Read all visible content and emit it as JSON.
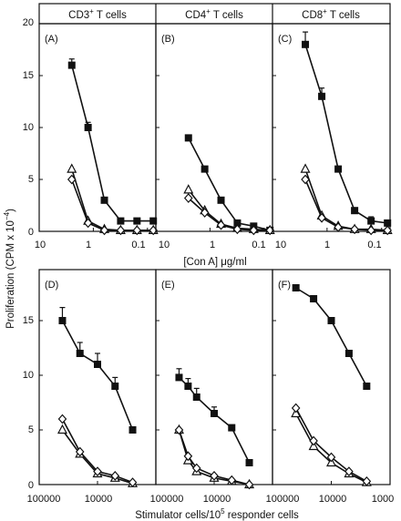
{
  "figure": {
    "ylabel_main": "Proliferation (CPM x 10",
    "ylabel_sup": "−4",
    "ylabel_end": ")",
    "row_top_xlabel": "[Con A] μg/ml",
    "row_bottom_xlabel_a": "Stimulator cells/10",
    "row_bottom_xlabel_sup": "5",
    "row_bottom_xlabel_b": " responder cells",
    "col_titles": [
      {
        "pre": "CD3",
        "sup": "+",
        "post": " T cells"
      },
      {
        "pre": "CD4",
        "sup": "+",
        "post": " T cells"
      },
      {
        "pre": "CD8",
        "sup": "+",
        "post": " T cells"
      }
    ],
    "y_ticks_top": [
      "0",
      "5",
      "10",
      "15",
      "20"
    ],
    "y_ticks_bottom": [
      "0",
      "5",
      "10",
      "15"
    ],
    "x_ticks_top": [
      "10",
      "1",
      "0.1"
    ],
    "x_ticks_bottom": [
      "100000",
      "10000",
      "1000"
    ]
  },
  "chart_data": [
    {
      "type": "line",
      "panel": "(A)",
      "xscale": "log",
      "xreversed": true,
      "xlim": [
        10,
        0.07
      ],
      "ylim": [
        0,
        20
      ],
      "series": [
        {
          "marker": "square",
          "x": [
            2.5,
            1.25,
            0.625,
            0.3125,
            0.156,
            0.078
          ],
          "y": [
            16,
            10,
            3,
            1,
            1,
            1
          ],
          "err": [
            0.6,
            0.5,
            0,
            0,
            0,
            0
          ]
        },
        {
          "marker": "triangle",
          "x": [
            2.5,
            1.25,
            0.625,
            0.3125,
            0.156,
            0.078
          ],
          "y": [
            6,
            1,
            0.2,
            0.1,
            0.1,
            0.1
          ],
          "err": [
            0,
            0,
            0,
            0,
            0,
            0
          ]
        },
        {
          "marker": "diamond",
          "x": [
            2.5,
            1.25,
            0.625,
            0.3125,
            0.156,
            0.078
          ],
          "y": [
            5,
            0.8,
            0.1,
            0.1,
            0.1,
            0.1
          ],
          "err": [
            0,
            0,
            0,
            0,
            0,
            0
          ]
        }
      ]
    },
    {
      "type": "line",
      "panel": "(B)",
      "xscale": "log",
      "xreversed": true,
      "xlim": [
        10,
        0.07
      ],
      "ylim": [
        0,
        20
      ],
      "series": [
        {
          "marker": "square",
          "x": [
            2.5,
            1.25,
            0.625,
            0.3125,
            0.156,
            0.078
          ],
          "y": [
            9,
            6,
            3,
            0.8,
            0.5,
            0.1
          ],
          "err": [
            0,
            0,
            0,
            0,
            0,
            0
          ]
        },
        {
          "marker": "triangle",
          "x": [
            2.5,
            1.25,
            0.625,
            0.3125,
            0.156,
            0.078
          ],
          "y": [
            4,
            2,
            0.7,
            0.3,
            0.2,
            0.1
          ],
          "err": [
            0,
            0,
            0,
            0,
            0,
            0
          ]
        },
        {
          "marker": "diamond",
          "x": [
            2.5,
            1.25,
            0.625,
            0.3125,
            0.156,
            0.078
          ],
          "y": [
            3.2,
            1.8,
            0.6,
            0.2,
            0.1,
            0.1
          ],
          "err": [
            0,
            0,
            0,
            0,
            0,
            0
          ]
        }
      ]
    },
    {
      "type": "line",
      "panel": "(C)",
      "xscale": "log",
      "xreversed": true,
      "xlim": [
        10,
        0.07
      ],
      "ylim": [
        0,
        20
      ],
      "series": [
        {
          "marker": "square",
          "x": [
            2.5,
            1.25,
            0.625,
            0.3125,
            0.156,
            0.078
          ],
          "y": [
            18,
            13,
            6,
            2,
            1,
            0.8
          ],
          "err": [
            1.2,
            0.8,
            0,
            0,
            0.4,
            0
          ]
        },
        {
          "marker": "triangle",
          "x": [
            2.5,
            1.25,
            0.625,
            0.3125,
            0.156,
            0.078
          ],
          "y": [
            6,
            1.5,
            0.5,
            0.2,
            0.2,
            0.1
          ],
          "err": [
            0,
            0,
            0,
            0,
            0,
            0
          ]
        },
        {
          "marker": "diamond",
          "x": [
            2.5,
            1.25,
            0.625,
            0.3125,
            0.156,
            0.078
          ],
          "y": [
            5,
            1.3,
            0.4,
            0.2,
            0.1,
            0.1
          ],
          "err": [
            0,
            0,
            0,
            0,
            0,
            0
          ]
        }
      ]
    },
    {
      "type": "line",
      "panel": "(D)",
      "xscale": "log",
      "xreversed": true,
      "xlim": [
        100000,
        1000
      ],
      "ylim": [
        0,
        18
      ],
      "series": [
        {
          "marker": "square",
          "x": [
            40000,
            20000,
            10000,
            5000,
            2500
          ],
          "y": [
            15,
            12,
            11,
            9,
            5
          ],
          "err": [
            1.2,
            1.0,
            1.0,
            0.8,
            0
          ]
        },
        {
          "marker": "triangle",
          "x": [
            40000,
            20000,
            10000,
            5000,
            2500
          ],
          "y": [
            5,
            2.8,
            1,
            0.6,
            0.1
          ],
          "err": [
            0,
            0,
            0,
            0,
            0
          ]
        },
        {
          "marker": "diamond",
          "x": [
            40000,
            20000,
            10000,
            5000,
            2500
          ],
          "y": [
            6,
            3,
            1.2,
            0.8,
            0.2
          ],
          "err": [
            0,
            0,
            0,
            0,
            0
          ]
        }
      ]
    },
    {
      "type": "line",
      "panel": "(E)",
      "xscale": "log",
      "xreversed": true,
      "xlim": [
        100000,
        1000
      ],
      "ylim": [
        0,
        18
      ],
      "series": [
        {
          "marker": "square",
          "x": [
            40000,
            28000,
            20000,
            10000,
            5000,
            2500
          ],
          "y": [
            9.8,
            9,
            8,
            6.5,
            5.2,
            2
          ],
          "err": [
            0.8,
            0.7,
            0.8,
            0.6,
            0,
            0
          ]
        },
        {
          "marker": "triangle",
          "x": [
            40000,
            28000,
            20000,
            10000,
            5000,
            2500
          ],
          "y": [
            5,
            2.2,
            1.2,
            0.6,
            0.3,
            0
          ],
          "err": [
            0,
            0,
            0,
            0,
            0,
            0
          ]
        },
        {
          "marker": "diamond",
          "x": [
            40000,
            28000,
            20000,
            10000,
            5000,
            2500
          ],
          "y": [
            5,
            2.6,
            1.5,
            0.8,
            0.4,
            0
          ],
          "err": [
            0,
            0,
            0,
            0,
            0,
            0
          ]
        }
      ]
    },
    {
      "type": "line",
      "panel": "(F)",
      "xscale": "log",
      "xreversed": true,
      "xlim": [
        100000,
        1000
      ],
      "ylim": [
        0,
        18
      ],
      "series": [
        {
          "marker": "square",
          "x": [
            40000,
            20000,
            10000,
            5000,
            2500
          ],
          "y": [
            18,
            17,
            15,
            12,
            9
          ],
          "err": [
            0,
            0,
            0,
            0,
            0
          ]
        },
        {
          "marker": "triangle",
          "x": [
            40000,
            20000,
            10000,
            5000,
            2500
          ],
          "y": [
            6.5,
            3.5,
            2,
            1,
            0.2
          ],
          "err": [
            0,
            0,
            0,
            0,
            0
          ]
        },
        {
          "marker": "diamond",
          "x": [
            40000,
            20000,
            10000,
            5000,
            2500
          ],
          "y": [
            7,
            4,
            2.5,
            1.2,
            0.3
          ],
          "err": [
            0,
            0,
            0,
            0,
            0
          ]
        }
      ]
    }
  ]
}
